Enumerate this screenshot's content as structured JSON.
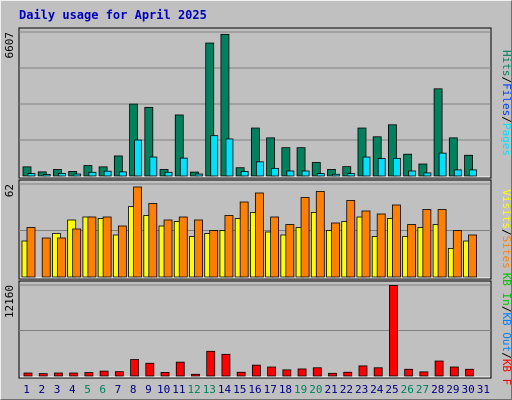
{
  "title": "Daily usage for April 2025",
  "colors": {
    "title": "#0000c0",
    "hits": "#00805c",
    "files": "#0040ff",
    "pages": "#00e0ff",
    "visits": "#ffff00",
    "sites": "#ff8000",
    "kbin": "#00c000",
    "kbout": "#0080ff",
    "kbf": "#ff0000",
    "weekend": "#00805c",
    "weekday": "#000080"
  },
  "legend": {
    "panel1": [
      {
        "label": "Hits",
        "color": "#00805c"
      },
      {
        "label": "Files",
        "color": "#0040ff"
      },
      {
        "label": "Pages",
        "color": "#00e0ff"
      }
    ],
    "panel2": [
      {
        "label": "Visits",
        "color": "#ffff00"
      },
      {
        "label": "Sites",
        "color": "#ff8000"
      }
    ],
    "panel3": [
      {
        "label": "KB In",
        "color": "#00c000"
      },
      {
        "label": "KB Out",
        "color": "#0080ff"
      },
      {
        "label": "KB F",
        "color": "#ff0000"
      }
    ],
    "separator": "/"
  },
  "chart_data": [
    {
      "type": "bar",
      "ytick": "6607",
      "ylim": [
        0,
        6607
      ],
      "categories": [
        "1",
        "2",
        "3",
        "4",
        "5",
        "6",
        "7",
        "8",
        "9",
        "10",
        "11",
        "12",
        "13",
        "14",
        "15",
        "16",
        "17",
        "18",
        "19",
        "20",
        "21",
        "22",
        "23",
        "24",
        "25",
        "26",
        "27",
        "28",
        "29",
        "30",
        "31"
      ],
      "weekend_days": [
        "5",
        "6",
        "12",
        "13",
        "19",
        "20",
        "26",
        "27"
      ],
      "series": [
        {
          "name": "Hits",
          "values": [
            420,
            190,
            300,
            210,
            480,
            420,
            920,
            3300,
            3150,
            300,
            2800,
            180,
            6100,
            6500,
            380,
            2200,
            1750,
            1300,
            1300,
            620,
            300,
            430,
            2200,
            1800,
            2350,
            1000,
            550,
            4000,
            1750,
            950,
            0
          ]
        },
        {
          "name": "Files",
          "values": [
            0,
            0,
            0,
            0,
            0,
            0,
            0,
            0,
            0,
            0,
            0,
            0,
            0,
            0,
            0,
            0,
            0,
            0,
            0,
            0,
            0,
            0,
            0,
            0,
            0,
            0,
            0,
            0,
            0,
            0,
            0
          ]
        },
        {
          "name": "Pages",
          "values": [
            110,
            70,
            120,
            90,
            170,
            220,
            190,
            1650,
            870,
            170,
            820,
            90,
            1850,
            1700,
            210,
            650,
            350,
            230,
            230,
            110,
            80,
            110,
            870,
            800,
            810,
            230,
            140,
            1050,
            280,
            280,
            0
          ]
        }
      ]
    },
    {
      "type": "bar",
      "ytick": "62",
      "ylim": [
        0,
        62
      ],
      "categories": [
        "1",
        "2",
        "3",
        "4",
        "5",
        "6",
        "7",
        "8",
        "9",
        "10",
        "11",
        "12",
        "13",
        "14",
        "15",
        "16",
        "17",
        "18",
        "19",
        "20",
        "21",
        "22",
        "23",
        "24",
        "25",
        "26",
        "27",
        "28",
        "29",
        "30",
        "31"
      ],
      "series": [
        {
          "name": "Visits",
          "values": [
            24,
            0,
            29,
            38,
            40,
            39,
            28,
            47,
            41,
            34,
            37,
            27,
            29,
            31,
            39,
            43,
            30,
            28,
            33,
            43,
            31,
            37,
            40,
            27,
            39,
            27,
            33,
            35,
            19,
            24,
            0
          ]
        },
        {
          "name": "Sites",
          "values": [
            33,
            26,
            26,
            32,
            40,
            40,
            34,
            60,
            49,
            38,
            40,
            38,
            31,
            41,
            50,
            56,
            40,
            35,
            53,
            57,
            36,
            51,
            44,
            42,
            48,
            35,
            45,
            45,
            31,
            28,
            0
          ]
        }
      ]
    },
    {
      "type": "bar",
      "ytick": "12160",
      "ylim": [
        0,
        12160
      ],
      "categories": [
        "1",
        "2",
        "3",
        "4",
        "5",
        "6",
        "7",
        "8",
        "9",
        "10",
        "11",
        "12",
        "13",
        "14",
        "15",
        "16",
        "17",
        "18",
        "19",
        "20",
        "21",
        "22",
        "23",
        "24",
        "25",
        "26",
        "27",
        "28",
        "29",
        "30",
        "31"
      ],
      "series": [
        {
          "name": "KB In",
          "values": [
            0,
            0,
            0,
            0,
            0,
            0,
            0,
            0,
            0,
            0,
            0,
            0,
            0,
            0,
            0,
            0,
            0,
            0,
            0,
            0,
            0,
            0,
            0,
            0,
            0,
            0,
            0,
            0,
            0,
            0,
            0
          ]
        },
        {
          "name": "KB Out",
          "values": [
            0,
            0,
            0,
            0,
            0,
            0,
            0,
            0,
            0,
            0,
            0,
            0,
            0,
            0,
            0,
            0,
            0,
            0,
            0,
            0,
            0,
            0,
            0,
            0,
            0,
            0,
            0,
            0,
            0,
            0,
            0
          ]
        },
        {
          "name": "KB F",
          "values": [
            400,
            320,
            400,
            400,
            460,
            650,
            580,
            2200,
            1700,
            480,
            1850,
            230,
            3300,
            2900,
            500,
            1450,
            1200,
            820,
            940,
            1100,
            360,
            500,
            1350,
            1100,
            12100,
            900,
            550,
            2000,
            1200,
            900,
            0
          ]
        }
      ]
    }
  ]
}
